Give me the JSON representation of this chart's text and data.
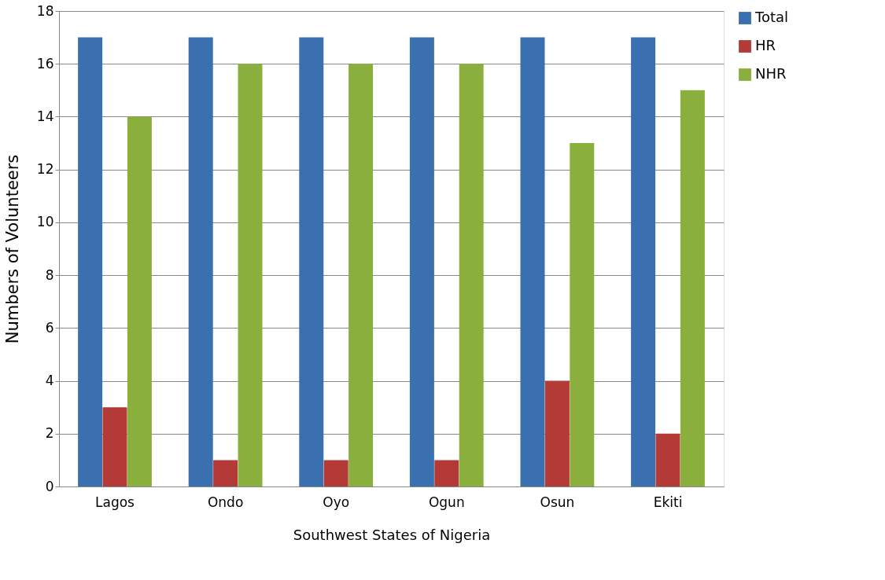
{
  "chart_data": {
    "type": "bar",
    "xlabel": "Southwest States of Nigeria",
    "ylabel": "Numbers of Volunteers",
    "categories": [
      "Lagos",
      "Ondo",
      "Oyo",
      "Ogun",
      "Osun",
      "Ekiti"
    ],
    "series": [
      {
        "name": "Total",
        "color": "#3a6fb0",
        "values": [
          17,
          17,
          17,
          17,
          17,
          17
        ]
      },
      {
        "name": "HR",
        "color": "#b33a36",
        "values": [
          3,
          1,
          1,
          1,
          4,
          2
        ]
      },
      {
        "name": "NHR",
        "color": "#8aaf3c",
        "values": [
          14,
          16,
          16,
          16,
          13,
          15
        ]
      }
    ],
    "ylim": [
      0,
      18
    ],
    "yticks": [
      0,
      2,
      4,
      6,
      8,
      10,
      12,
      14,
      16,
      18
    ],
    "grid": "y",
    "legend": "right"
  }
}
